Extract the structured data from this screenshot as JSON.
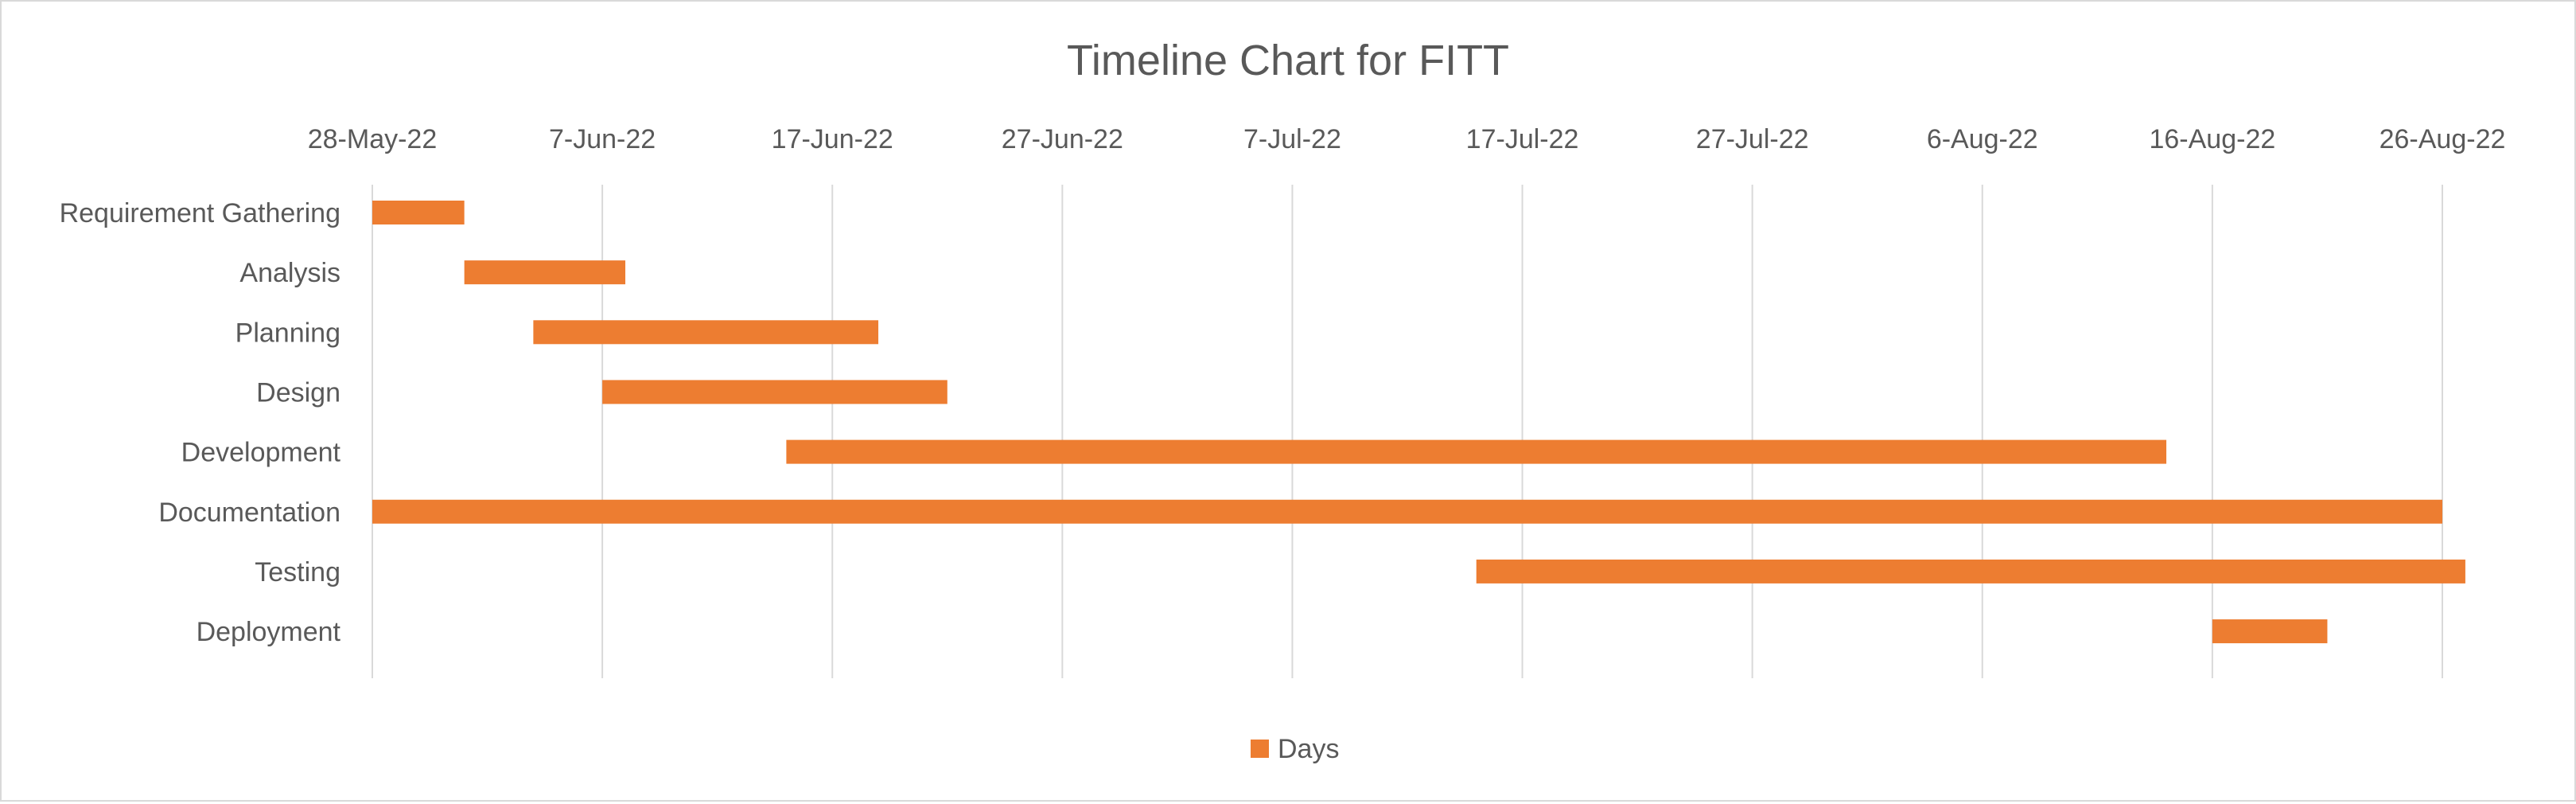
{
  "chart_data": {
    "type": "bar",
    "subtype": "gantt",
    "orientation": "horizontal",
    "title": "Timeline Chart for FITT",
    "xlabel": "",
    "ylabel": "",
    "x_axis_position": "top",
    "x_ticks": [
      "28-May-22",
      "7-Jun-22",
      "17-Jun-22",
      "27-Jun-22",
      "7-Jul-22",
      "17-Jul-22",
      "27-Jul-22",
      "6-Aug-22",
      "16-Aug-22",
      "26-Aug-22"
    ],
    "xlim": [
      "2022-05-28",
      "2022-08-26"
    ],
    "grid": "vertical",
    "legend": {
      "position": "bottom",
      "entries": [
        "Days"
      ]
    },
    "bar_color": "#ED7D31",
    "categories": [
      "Requirement Gathering",
      "Analysis",
      "Planning",
      "Design",
      "Development",
      "Documentation",
      "Testing",
      "Deployment"
    ],
    "series": [
      {
        "name": "Days",
        "start": [
          "2022-05-28",
          "2022-06-01",
          "2022-06-04",
          "2022-06-07",
          "2022-06-15",
          "2022-05-28",
          "2022-07-15",
          "2022-08-16"
        ],
        "end": [
          "2022-06-01",
          "2022-06-08",
          "2022-06-19",
          "2022-06-22",
          "2022-08-14",
          "2022-08-26",
          "2022-08-27",
          "2022-08-21"
        ],
        "values": [
          4,
          7,
          15,
          15,
          60,
          90,
          43,
          5
        ]
      }
    ]
  }
}
